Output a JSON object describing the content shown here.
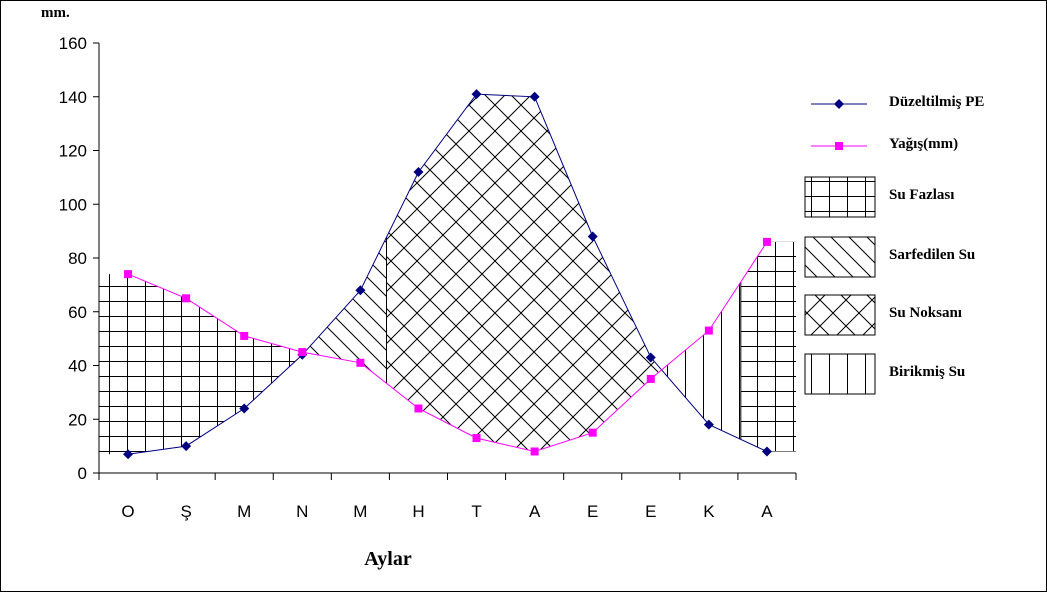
{
  "chart_data": {
    "type": "line",
    "ylabel": "mm.",
    "xlabel": "Aylar",
    "categories": [
      "O",
      "Ş",
      "M",
      "N",
      "M",
      "H",
      "T",
      "A",
      "E",
      "E",
      "K",
      "A"
    ],
    "ylim": [
      0,
      160
    ],
    "yticks": [
      0,
      20,
      40,
      60,
      80,
      100,
      120,
      140,
      160
    ],
    "grid": false,
    "legend_position": "right",
    "series": [
      {
        "name": "Düzeltilmiş PE",
        "color": "#000080",
        "marker": "diamond",
        "values": [
          7,
          10,
          24,
          44,
          68,
          112,
          141,
          140,
          88,
          43,
          18,
          8
        ]
      },
      {
        "name": "Yağış(mm)",
        "color": "#ff00ff",
        "marker": "square",
        "values": [
          74,
          65,
          51,
          45,
          41,
          24,
          13,
          8,
          15,
          35,
          53,
          86
        ]
      }
    ],
    "shaded_regions": [
      {
        "name": "Su Fazlası",
        "pattern": "grid"
      },
      {
        "name": "Sarfedilen Su",
        "pattern": "diagonal"
      },
      {
        "name": "Su Noksanı",
        "pattern": "crosshatch"
      },
      {
        "name": "Birikmiş Su",
        "pattern": "vertical"
      }
    ],
    "legend_items": [
      {
        "label": "Düzeltilmiş PE",
        "type": "line",
        "color": "#000080",
        "marker": "diamond"
      },
      {
        "label": "Yağış(mm)",
        "type": "line",
        "color": "#ff00ff",
        "marker": "square"
      },
      {
        "label": "Su Fazlası",
        "type": "pattern",
        "pattern": "grid"
      },
      {
        "label": "Sarfedilen Su",
        "type": "pattern",
        "pattern": "diagonal"
      },
      {
        "label": "Su Noksanı",
        "type": "pattern",
        "pattern": "crosshatch"
      },
      {
        "label": "Birikmiş Su",
        "type": "pattern",
        "pattern": "vertical"
      }
    ]
  }
}
